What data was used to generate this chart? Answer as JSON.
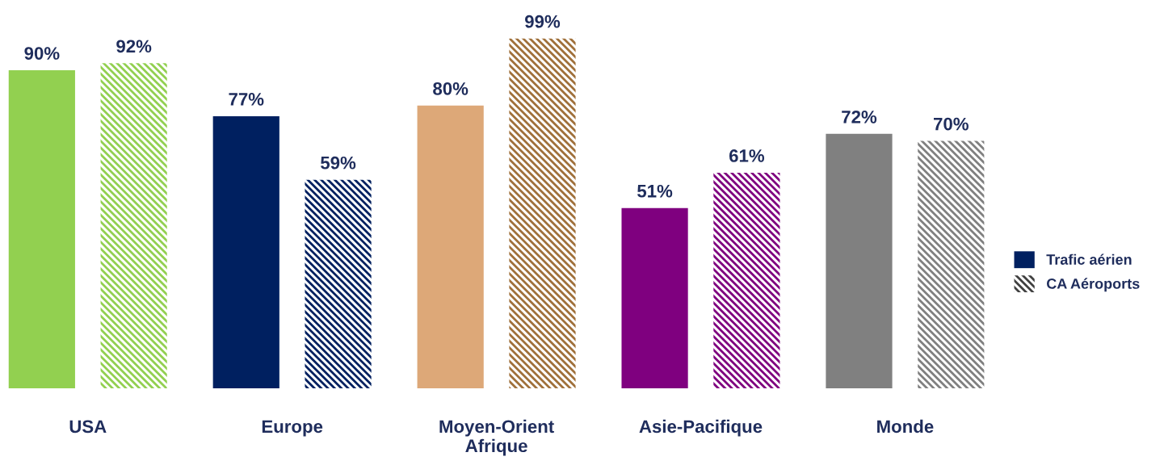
{
  "chart_data": {
    "type": "bar",
    "categories": [
      "USA",
      "Europe",
      "Moyen-Orient\nAfrique",
      "Asie-Pacifique",
      "Monde"
    ],
    "series": [
      {
        "name": "Trafic aérien",
        "color": "#002060",
        "colors": [
          "#92d050",
          "#002060",
          "#dda878",
          "#7f007f",
          "#808080"
        ],
        "values": [
          90,
          77,
          80,
          51,
          72
        ],
        "value_labels": [
          "90%",
          "77%",
          "80%",
          "51%",
          "72%"
        ]
      },
      {
        "name": "CA Aéroports",
        "color": "#404040",
        "colors": [
          "#92d050",
          "#002060",
          "#a0703a",
          "#7f007f",
          "#808080"
        ],
        "values": [
          92,
          59,
          99,
          61,
          70
        ],
        "value_labels": [
          "92%",
          "59%",
          "99%",
          "61%",
          "70%"
        ]
      }
    ],
    "legend": "right",
    "grid": false
  }
}
